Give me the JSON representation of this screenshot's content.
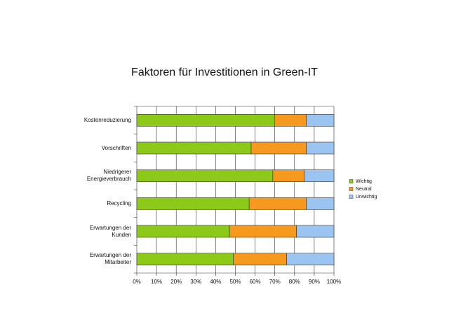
{
  "chart_data": {
    "type": "stacked-bar-horizontal",
    "title": "Faktoren für Investitionen in Green-IT",
    "categories": [
      "Kostenreduzierung",
      "Vorschriften",
      "Niedrigerer Energieverbrauch",
      "Recycling",
      "Erwartungen der Kunden",
      "Erwartungen der Mitarbeiter"
    ],
    "series": [
      {
        "name": "Wichtig",
        "color": "#8cc919",
        "values": [
          70,
          58,
          69,
          57,
          47,
          49
        ]
      },
      {
        "name": "Neutral",
        "color": "#f59a1e",
        "values": [
          16,
          28,
          16,
          29,
          34,
          27
        ]
      },
      {
        "name": "Unwichtig",
        "color": "#9cc4f0",
        "values": [
          14,
          14,
          15,
          14,
          19,
          24
        ]
      }
    ],
    "xlim": [
      0,
      100
    ],
    "xticks": [
      {
        "value": 0,
        "label": "0%"
      },
      {
        "value": 10,
        "label": "10%"
      },
      {
        "value": 20,
        "label": "20%"
      },
      {
        "value": 30,
        "label": "30%"
      },
      {
        "value": 40,
        "label": "40%"
      },
      {
        "value": 50,
        "label": "50%"
      },
      {
        "value": 60,
        "label": "60%"
      },
      {
        "value": 70,
        "label": "70%"
      },
      {
        "value": 80,
        "label": "80%"
      },
      {
        "value": 90,
        "label": "90%"
      },
      {
        "value": 100,
        "label": "100%"
      }
    ],
    "grid": true,
    "legend": "right"
  }
}
